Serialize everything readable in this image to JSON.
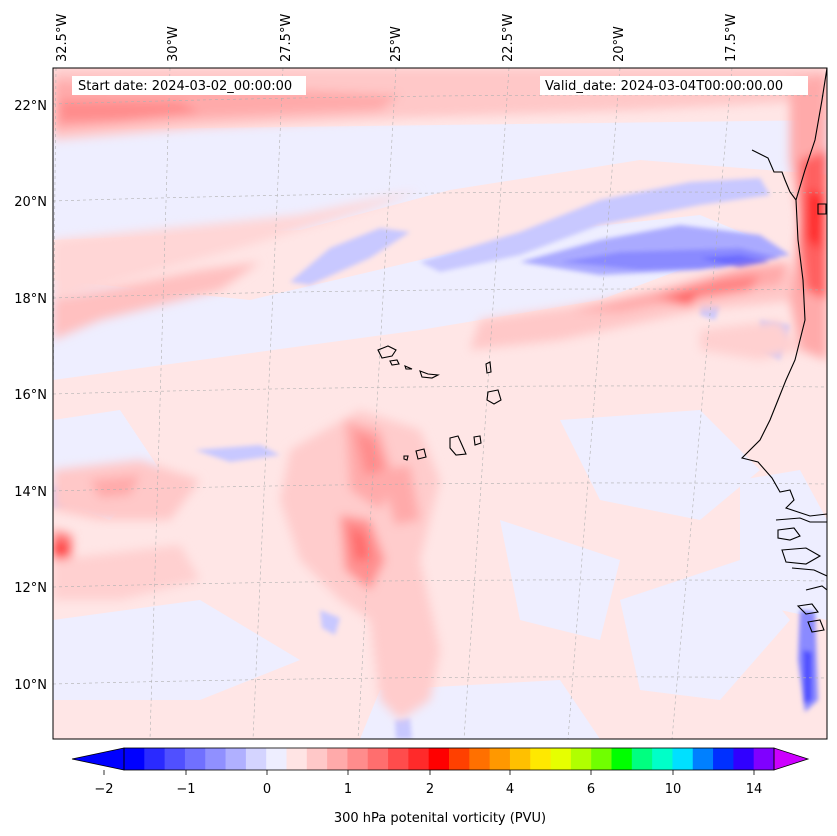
{
  "map": {
    "info_left": "Start date: 2024-03-02_00:00:00",
    "info_right": "Valid_date: 2024-03-04T00:00:00.00",
    "lon_labels": [
      "32.5°W",
      "30°W",
      "27.5°W",
      "25°W",
      "22.5°W",
      "20°W",
      "17.5°W"
    ],
    "lat_labels": [
      "22°N",
      "20°N",
      "18°N",
      "16°N",
      "14°N",
      "12°N",
      "10°N"
    ],
    "extent": {
      "lon_min": -32.5,
      "lon_max": -15.4,
      "lat_min": 8.9,
      "lat_max": 22.8
    },
    "field": "300 hPa potential vorticity",
    "colors": {
      "coast": "#000000",
      "grid": "#b0b0b0",
      "background_field": "#ffe6e6"
    }
  },
  "colorbar": {
    "label": "300 hPa potenital vorticity (PVU)",
    "tick_labels": [
      "−2",
      "−1",
      "0",
      "1",
      "2",
      "4",
      "6",
      "10",
      "14"
    ],
    "colors": [
      "#0000ff",
      "#2a2aff",
      "#5050ff",
      "#7070ff",
      "#9090ff",
      "#b0b0ff",
      "#d4d4ff",
      "#eeeeff",
      "#ffe4e4",
      "#ffc8c8",
      "#ffaaaa",
      "#ff8c8c",
      "#ff6e6e",
      "#ff4c4c",
      "#ff2a2a",
      "#ff0000",
      "#ff4000",
      "#ff7000",
      "#ff9800",
      "#ffc000",
      "#ffe800",
      "#e6ff00",
      "#b0ff00",
      "#70ff00",
      "#00ff00",
      "#00ff80",
      "#00ffc8",
      "#00e0ff",
      "#0080ff",
      "#0030ff",
      "#3000ff",
      "#8000ff"
    ],
    "extend_low": "#0000ff",
    "extend_high": "#cc00ff"
  }
}
